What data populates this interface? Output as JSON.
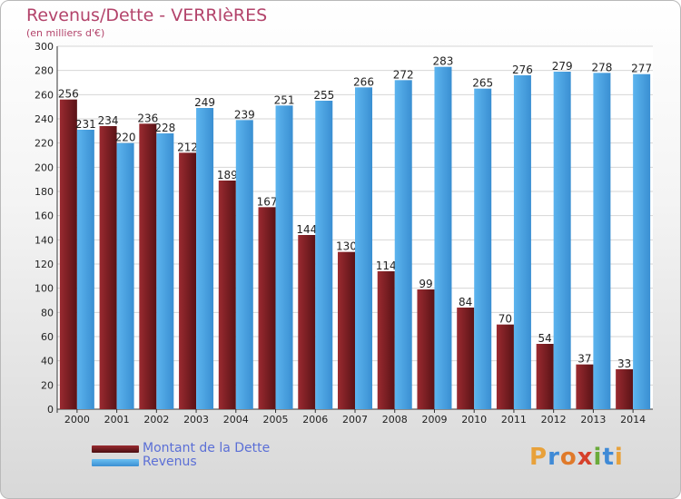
{
  "title": "Revenus/Dette - VERRIèRES",
  "subtitle": "(en milliers d'€)",
  "logo": {
    "text": "Proxiti",
    "letters": [
      "P",
      "r",
      "o",
      "x",
      "i",
      "t",
      "i"
    ],
    "colors": [
      "#e8a13a",
      "#3f8ad6",
      "#e07a2a",
      "#d6402a",
      "#6aaa3a",
      "#3f8ad6",
      "#e8a13a"
    ]
  },
  "chart_data": {
    "type": "bar",
    "categories": [
      "2000",
      "2001",
      "2002",
      "2003",
      "2004",
      "2005",
      "2006",
      "2007",
      "2008",
      "2009",
      "2010",
      "2011",
      "2012",
      "2013",
      "2014"
    ],
    "series": [
      {
        "name": "Montant de la Dette",
        "color": "#7a1f24",
        "values": [
          256,
          234,
          236,
          212,
          189,
          167,
          144,
          130,
          114,
          99,
          84,
          70,
          54,
          37,
          33
        ]
      },
      {
        "name": "Revenus",
        "color": "#4fa6e6",
        "values": [
          231,
          220,
          228,
          249,
          239,
          251,
          255,
          266,
          272,
          283,
          265,
          276,
          279,
          278,
          277
        ]
      }
    ],
    "y_ticks": [
      "0",
      "20",
      "40",
      "60",
      "80",
      "100",
      "120",
      "140",
      "160",
      "180",
      "200",
      "220",
      "240",
      "260",
      "280",
      "300"
    ],
    "ylim": [
      0,
      300
    ],
    "grid": true,
    "legend_position": "bottom-left"
  }
}
